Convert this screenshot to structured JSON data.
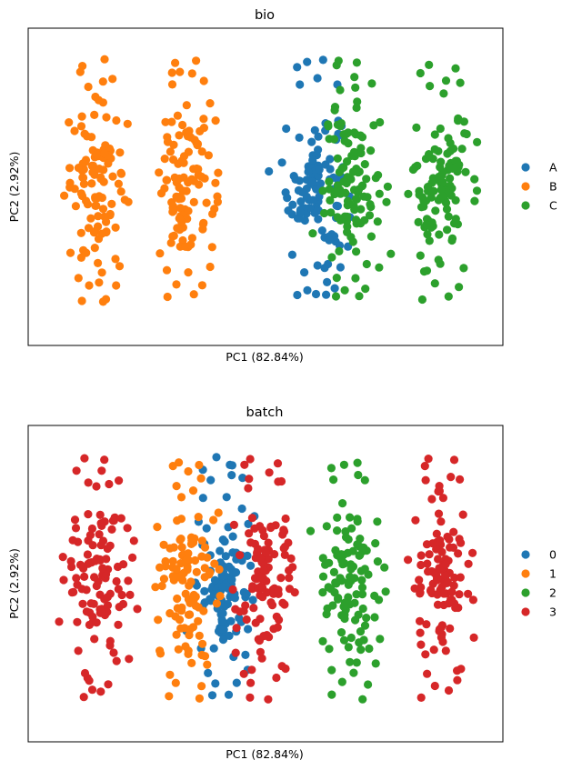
{
  "chart_data": [
    {
      "type": "scatter",
      "title": "bio",
      "xlabel": "PC1 (82.84%)",
      "ylabel": "PC2 (2.92%)",
      "xlim": [
        0,
        100
      ],
      "ylim": [
        0,
        100
      ],
      "grid": false,
      "ticks": false,
      "legend_placement": "right",
      "series": [
        {
          "name": "A",
          "color": "#1f77b4",
          "clusters": [
            [
              60.5,
              50.5
            ]
          ]
        },
        {
          "name": "B",
          "color": "#ff7f0e",
          "clusters": [
            [
              14.5,
              50.5
            ],
            [
              33.5,
              50.5
            ]
          ]
        },
        {
          "name": "C",
          "color": "#2ca02c",
          "clusters": [
            [
              68,
              50.5
            ],
            [
              87,
              50.5
            ]
          ]
        }
      ]
    },
    {
      "type": "scatter",
      "title": "batch",
      "xlabel": "PC1 (82.84%)",
      "ylabel": "PC2 (2.92%)",
      "xlim": [
        0,
        100
      ],
      "ylim": [
        0,
        100
      ],
      "grid": false,
      "ticks": false,
      "legend_placement": "right",
      "series": [
        {
          "name": "0",
          "color": "#1f77b4",
          "clusters": [
            [
              41.5,
              50.5
            ]
          ]
        },
        {
          "name": "1",
          "color": "#ff7f0e",
          "clusters": [
            [
              33.5,
              50.5
            ]
          ]
        },
        {
          "name": "2",
          "color": "#2ca02c",
          "clusters": [
            [
              68,
              50.5
            ]
          ]
        },
        {
          "name": "3",
          "color": "#d62728",
          "clusters": [
            [
              14.5,
              50.5
            ],
            [
              49.5,
              50.5
            ],
            [
              87,
              50.5
            ]
          ]
        }
      ]
    }
  ]
}
